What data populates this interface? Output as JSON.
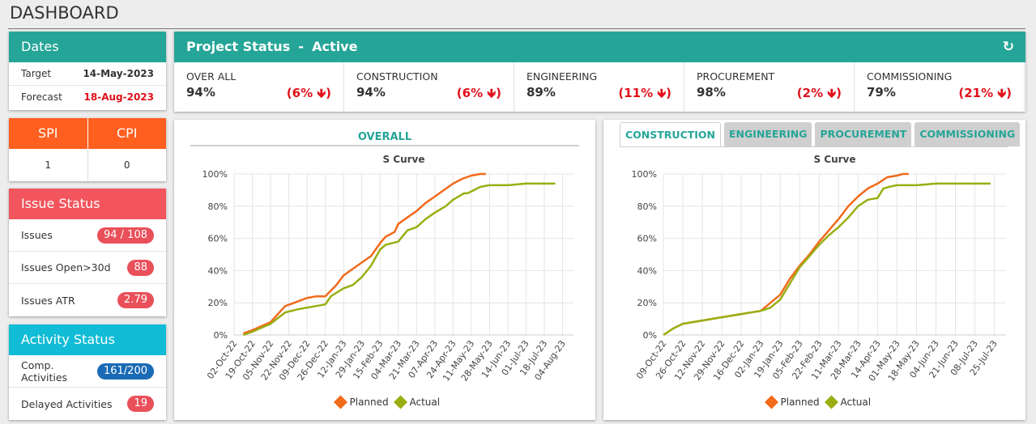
{
  "page": {
    "title": "DASHBOARD"
  },
  "dates": {
    "header": "Dates",
    "rows": [
      {
        "label": "Target",
        "value": "14-May-2023"
      },
      {
        "label": "Forecast",
        "value": "18-Aug-2023"
      }
    ]
  },
  "spicpi": {
    "spi_label": "SPI",
    "cpi_label": "CPI",
    "spi_value": "1",
    "cpi_value": "0"
  },
  "issues": {
    "header": "Issue Status",
    "rows": [
      {
        "label": "Issues",
        "value": "94 / 108"
      },
      {
        "label": "Issues Open>30d",
        "value": "88"
      },
      {
        "label": "Issues ATR",
        "value": "2.79"
      }
    ]
  },
  "activity": {
    "header": "Activity Status",
    "rows": [
      {
        "label": "Comp. Activities",
        "value": "161/200"
      },
      {
        "label": "Delayed Activities",
        "value": "19"
      }
    ]
  },
  "project": {
    "title": "Project Status",
    "separator": "-",
    "state": "Active",
    "refresh_icon": "refresh-icon",
    "stats": [
      {
        "label": "OVER ALL",
        "pct": "94%",
        "change": "(6%"
      },
      {
        "label": "CONSTRUCTION",
        "pct": "94%",
        "change": "(6%"
      },
      {
        "label": "ENGINEERING",
        "pct": "89%",
        "change": "(11%"
      },
      {
        "label": "PROCUREMENT",
        "pct": "98%",
        "change": "(2%"
      },
      {
        "label": "COMMISSIONING",
        "pct": "79%",
        "change": "(21%"
      }
    ],
    "arrow_icon": "arrow-down-icon",
    "close_paren": ")"
  },
  "overall_panel": {
    "title": "OVERALL"
  },
  "discipline_panel": {
    "tabs": [
      "CONSTRUCTION",
      "ENGINEERING",
      "PROCUREMENT",
      "COMMISSIONING"
    ],
    "active_tab": "CONSTRUCTION"
  },
  "colors": {
    "planned": "#f26a1b",
    "actual": "#9aae12",
    "teal": "#25a597"
  },
  "chart_data": [
    {
      "type": "line",
      "title": "S Curve",
      "ylim": [
        0,
        100
      ],
      "y_ticks": [
        "0%",
        "20%",
        "40%",
        "60%",
        "80%",
        "100%"
      ],
      "x_ticks": [
        "02-Oct-22",
        "19-Oct-22",
        "05-Nov-22",
        "22-Nov-22",
        "09-Dec-22",
        "26-Dec-22",
        "12-Jan-23",
        "29-Jan-23",
        "15-Feb-23",
        "04-Mar-23",
        "21-Mar-23",
        "07-Apr-23",
        "24-Apr-23",
        "11-May-23",
        "28-May-23",
        "14-Jun-23",
        "01-Jul-23",
        "18-Jul-23",
        "04-Aug-23"
      ],
      "legend": [
        "Planned",
        "Actual"
      ],
      "series": [
        {
          "name": "Planned",
          "x": [
            0.5,
            1,
            2,
            2.8,
            3.3,
            4,
            4.5,
            5,
            5.6,
            6,
            6.5,
            7,
            7.5,
            8,
            8.3,
            8.8,
            9,
            9.5,
            10,
            10.5,
            11,
            11.5,
            12,
            12.5,
            13,
            13.5,
            13.8
          ],
          "values": [
            1,
            3,
            8,
            18,
            20,
            23,
            24,
            24,
            31,
            37,
            41,
            45,
            49,
            57,
            61,
            64,
            69,
            73,
            77,
            82,
            86,
            90,
            94,
            97,
            99,
            100,
            100
          ]
        },
        {
          "name": "Actual",
          "x": [
            0.5,
            1,
            2,
            2.8,
            3.5,
            4,
            5,
            5.3,
            6,
            6.5,
            7,
            7.5,
            8,
            8.3,
            9,
            9.5,
            10,
            10.5,
            11,
            11.6,
            12,
            12.6,
            12.8,
            13.5,
            14,
            15,
            16,
            17,
            17.6
          ],
          "values": [
            0,
            2,
            7,
            14,
            16,
            17,
            19,
            24,
            29,
            31,
            36,
            43,
            53,
            56,
            58,
            65,
            67,
            72,
            76,
            80,
            84,
            88,
            88,
            92,
            93,
            93,
            94,
            94,
            94
          ]
        }
      ]
    },
    {
      "type": "line",
      "title": "S Curve",
      "ylim": [
        0,
        100
      ],
      "y_ticks": [
        "0%",
        "20%",
        "40%",
        "60%",
        "80%",
        "100%"
      ],
      "x_ticks": [
        "09-Oct-22",
        "26-Oct-22",
        "12-Nov-22",
        "29-Nov-22",
        "16-Dec-22",
        "02-Jan-23",
        "19-Jan-23",
        "05-Feb-23",
        "22-Feb-23",
        "11-Mar-23",
        "28-Mar-23",
        "14-Apr-23",
        "01-May-23",
        "18-May-23",
        "04-Jun-23",
        "21-Jun-23",
        "08-Jul-23",
        "25-Jul-23"
      ],
      "legend": [
        "Planned",
        "Actual"
      ],
      "series": [
        {
          "name": "Planned",
          "x": [
            0,
            0.5,
            1,
            1.5,
            2,
            3,
            4,
            5,
            5.5,
            6,
            6.5,
            7,
            7.5,
            8,
            8.5,
            9,
            9.5,
            10,
            10.5,
            11,
            11.5,
            12,
            12.3,
            12.6
          ],
          "values": [
            0,
            4,
            7,
            8,
            9,
            11,
            13,
            15,
            20,
            25,
            35,
            43,
            50,
            58,
            65,
            72,
            80,
            86,
            91,
            94,
            98,
            99,
            100,
            100
          ]
        },
        {
          "name": "Actual",
          "x": [
            0,
            0.5,
            1,
            1.5,
            2,
            3,
            4,
            5,
            5.5,
            6,
            6.5,
            7,
            7.5,
            8,
            8.5,
            9,
            9.5,
            10,
            10.5,
            11,
            11.3,
            11.6,
            12,
            12.5,
            13,
            14,
            15,
            16,
            16.8
          ],
          "values": [
            0,
            4,
            7,
            8,
            9,
            11,
            13,
            15,
            17,
            22,
            32,
            42,
            49,
            56,
            62,
            67,
            73,
            80,
            84,
            85,
            91,
            92,
            93,
            93,
            93,
            94,
            94,
            94,
            94
          ]
        }
      ]
    }
  ]
}
